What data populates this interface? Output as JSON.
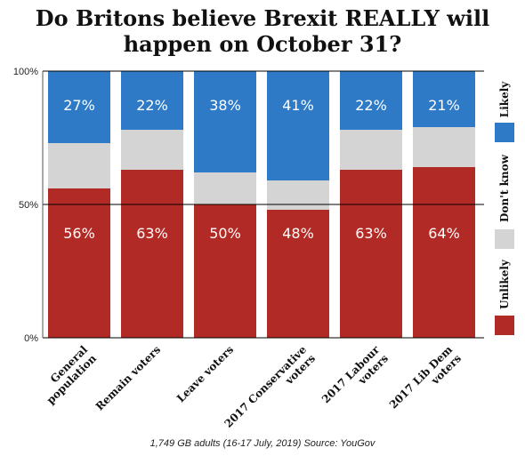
{
  "title_lines": [
    "Do Britons believe Brexit REALLY will",
    "happen on October 31?"
  ],
  "source": "1,749 GB adults (16-17 July, 2019) Source: YouGov",
  "chart_data": {
    "type": "bar",
    "stacked": true,
    "title": "Do Britons believe Brexit REALLY will happen on October 31?",
    "categories": [
      [
        "General",
        "population"
      ],
      [
        "Remain voters"
      ],
      [
        "Leave voters"
      ],
      [
        "2017 Conservative",
        "voters"
      ],
      [
        "2017 Labour",
        "voters"
      ],
      [
        "2017 Lib Dem",
        "voters"
      ]
    ],
    "series": [
      {
        "name": "Unlikely",
        "values": [
          56,
          63,
          50,
          48,
          63,
          64
        ],
        "color": "#b22a25",
        "labeled": true
      },
      {
        "name": "Don't know",
        "values": [
          17,
          15,
          12,
          11,
          15,
          15
        ],
        "color": "#d4d4d4",
        "labeled": false
      },
      {
        "name": "Likely",
        "values": [
          27,
          22,
          38,
          41,
          22,
          21
        ],
        "color": "#2e7ac6",
        "labeled": true
      }
    ],
    "value_suffix": "%",
    "yticks": [
      "0%",
      "50%",
      "100%"
    ],
    "ylim": [
      0,
      100
    ],
    "grid": true,
    "legend_position": "right"
  }
}
